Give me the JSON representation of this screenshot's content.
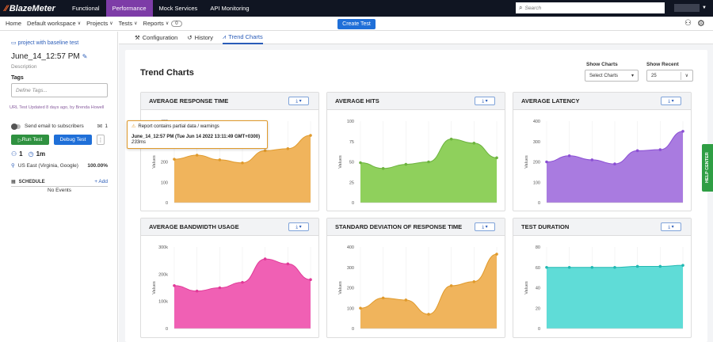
{
  "topnav": {
    "logo": "BlazeMeter",
    "tabs": [
      {
        "label": "Functional",
        "active": false
      },
      {
        "label": "Performance",
        "active": true
      },
      {
        "label": "Mock Services",
        "active": false
      },
      {
        "label": "API Monitoring",
        "active": false
      }
    ],
    "search_placeholder": "Search"
  },
  "subnav": {
    "items": [
      {
        "label": "Home",
        "dropdown": false
      },
      {
        "label": "Default workspace",
        "dropdown": true
      },
      {
        "label": "Projects",
        "dropdown": true
      },
      {
        "label": "Tests",
        "dropdown": true
      },
      {
        "label": "Reports",
        "dropdown": true
      }
    ],
    "reports_count": "0",
    "create_test": "Create Test"
  },
  "left": {
    "project_link": "project with baseline test",
    "test_name": "June_14_12:57 PM",
    "description": "Description",
    "tags_label": "Tags",
    "tags_placeholder": "Define Tags...",
    "url_line": "URL Test Updated 8 days ago, by Brenda Howell",
    "email_label": "Send email to subscribers",
    "subscriber_count": "1",
    "run_test": "Run Test",
    "debug_test": "Debug Test",
    "more": "⋮",
    "users": "1",
    "duration": "1m",
    "location": "US East (Virginia, Google)",
    "location_pct": "100.00%",
    "schedule_label": "SCHEDULE",
    "add_label": "+ Add",
    "no_events": "No Events"
  },
  "main": {
    "tabs": [
      {
        "label": "Configuration",
        "icon": "wrench-icon",
        "glyph": "⚒",
        "active": false
      },
      {
        "label": "History",
        "icon": "history-icon",
        "glyph": "↺",
        "active": false
      },
      {
        "label": "Trend Charts",
        "icon": "trend-icon",
        "glyph": "⩘",
        "active": true
      }
    ],
    "heading": "Trend Charts",
    "show_charts_label": "Show Charts",
    "show_charts_value": "Select Charts",
    "show_recent_label": "Show Recent",
    "show_recent_value": "25"
  },
  "tooltip": {
    "warning": "Report contains partial data / warnings",
    "title": "June_14_12:57 PM (Tue Jun 14 2022 13:11:49 GMT+0300)",
    "value": "233ms"
  },
  "help_center": "HELP CENTER",
  "chart_data": [
    {
      "id": "avg-response-time",
      "type": "area",
      "title": "AVERAGE RESPONSE TIME",
      "ylabel": "Values",
      "yticks": [
        "0",
        "100",
        "200",
        "300",
        "400"
      ],
      "ylim": [
        0,
        400
      ],
      "values": [
        213,
        233,
        210,
        195,
        255,
        265,
        330
      ],
      "color": "#f0b45c",
      "line": "#e09a2c"
    },
    {
      "id": "avg-hits",
      "type": "area",
      "title": "AVERAGE HITS",
      "ylabel": "Values",
      "yticks": [
        "0",
        "25",
        "50",
        "75",
        "100"
      ],
      "ylim": [
        0,
        100
      ],
      "values": [
        49,
        42,
        47,
        50,
        78,
        73,
        55
      ],
      "color": "#8fd05c",
      "line": "#6db33f"
    },
    {
      "id": "avg-latency",
      "type": "area",
      "title": "AVERAGE LATENCY",
      "ylabel": "Values",
      "yticks": [
        "0",
        "100",
        "200",
        "300",
        "400"
      ],
      "ylim": [
        0,
        400
      ],
      "values": [
        200,
        230,
        210,
        190,
        255,
        260,
        350
      ],
      "color": "#a97be0",
      "line": "#8b4fd4"
    },
    {
      "id": "avg-bandwidth",
      "type": "area",
      "title": "AVERAGE BANDWIDTH USAGE",
      "ylabel": "Values",
      "yticks": [
        "0",
        "100k",
        "200k",
        "300k"
      ],
      "ylim": [
        0,
        300000
      ],
      "values": [
        158000,
        138000,
        150000,
        170000,
        256000,
        238000,
        180000
      ],
      "color": "#f060b4",
      "line": "#e03a98"
    },
    {
      "id": "stddev-response",
      "type": "area",
      "title": "STANDARD DEVIATION OF RESPONSE TIME",
      "ylabel": "Values",
      "yticks": [
        "0",
        "100",
        "200",
        "300",
        "400"
      ],
      "ylim": [
        0,
        400
      ],
      "values": [
        100,
        150,
        140,
        70,
        210,
        230,
        365
      ],
      "color": "#f0b45c",
      "line": "#e09a2c"
    },
    {
      "id": "test-duration",
      "type": "area",
      "title": "TEST DURATION",
      "ylabel": "Values",
      "yticks": [
        "0",
        "20",
        "40",
        "60",
        "80"
      ],
      "ylim": [
        0,
        80
      ],
      "values": [
        60,
        60,
        60,
        60,
        61,
        61,
        62
      ],
      "color": "#5fdcd7",
      "line": "#22b8b2"
    }
  ]
}
